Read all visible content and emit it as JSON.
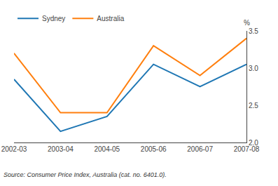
{
  "chart_data": {
    "type": "line",
    "categories": [
      "2002-03",
      "2003-04",
      "2004-05",
      "2005-06",
      "2006-07",
      "2007-08"
    ],
    "series": [
      {
        "name": "Sydney",
        "values": [
          2.85,
          2.15,
          2.35,
          3.05,
          2.75,
          3.05
        ]
      },
      {
        "name": "Australia",
        "values": [
          3.2,
          2.4,
          2.4,
          3.3,
          2.9,
          3.4
        ]
      }
    ],
    "ylabel": "%",
    "annotations": [
      "Source: Consumer Price Index, Australia (cat. no. 6401.0)."
    ],
    "ylim": [
      2.0,
      3.5
    ],
    "yticks": [
      {
        "value": 2.0,
        "label": "2.0"
      },
      {
        "value": 2.5,
        "label": "2.5"
      },
      {
        "value": 3.0,
        "label": "3.0"
      },
      {
        "value": 3.5,
        "label": "3.5"
      }
    ],
    "grid": false,
    "legend": "upper left"
  }
}
